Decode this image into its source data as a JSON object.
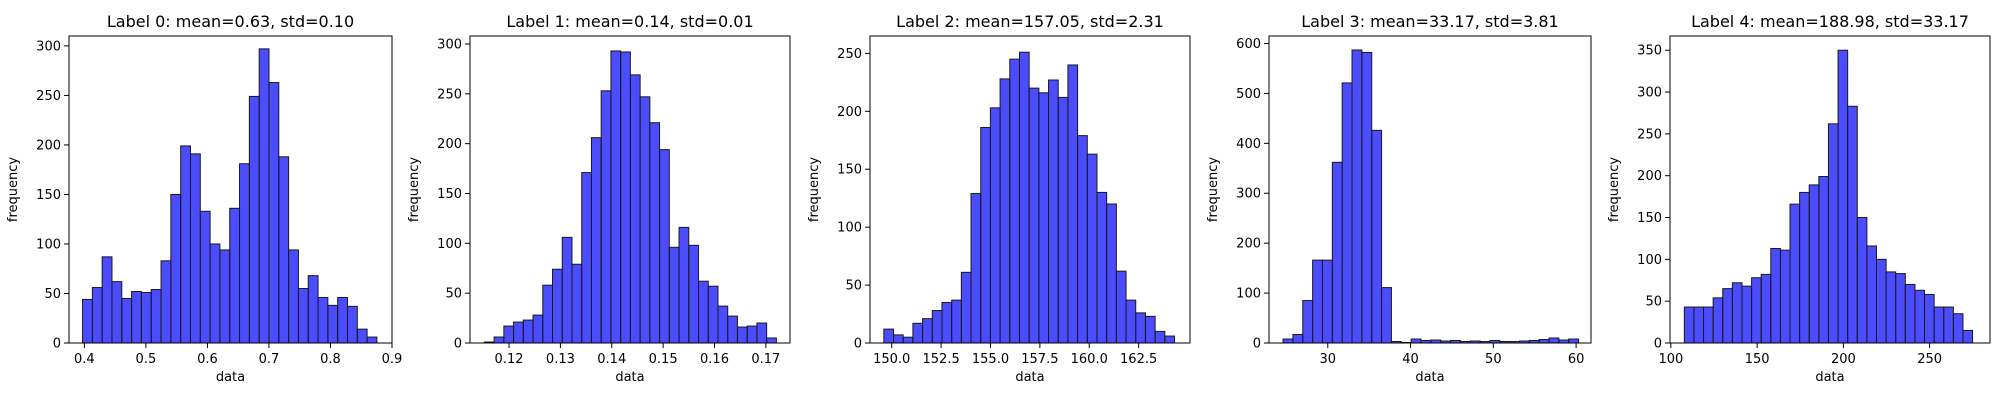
{
  "figure": {
    "background": "#ffffff"
  },
  "style": {
    "bar_fill": "#0000ff",
    "bar_opacity": 0.7,
    "bar_edge": "#1a1a1a",
    "axis_color": "#000000"
  },
  "chart_data": [
    {
      "type": "bar",
      "title": "Label 0: mean=0.63, std=0.10",
      "xlabel": "data",
      "ylabel": "frequency",
      "xlim": [
        0.375,
        0.9
      ],
      "ylim": [
        0,
        310
      ],
      "xticks": [
        0.4,
        0.5,
        0.6,
        0.7,
        0.8,
        0.9
      ],
      "xtick_labels": [
        "0.4",
        "0.5",
        "0.6",
        "0.7",
        "0.8",
        "0.9"
      ],
      "yticks": [
        0,
        50,
        100,
        150,
        200,
        250,
        300
      ],
      "ytick_labels": [
        "0",
        "50",
        "100",
        "150",
        "200",
        "250",
        "300"
      ],
      "bin_start": 0.397,
      "bin_width": 0.01595,
      "values": [
        44,
        56,
        87,
        62,
        45,
        52,
        51,
        54,
        83,
        150,
        199,
        191,
        133,
        100,
        94,
        136,
        181,
        249,
        297,
        263,
        188,
        94,
        55,
        68,
        46,
        38,
        46,
        37,
        14,
        6
      ]
    },
    {
      "type": "bar",
      "title": "Label 1: mean=0.14, std=0.01",
      "xlabel": "data",
      "ylabel": "frequency",
      "xlim": [
        0.1124,
        0.1747
      ],
      "ylim": [
        0,
        308
      ],
      "xticks": [
        0.12,
        0.13,
        0.14,
        0.15,
        0.16,
        0.17
      ],
      "xtick_labels": [
        "0.12",
        "0.13",
        "0.14",
        "0.15",
        "0.16",
        "0.17"
      ],
      "yticks": [
        0,
        50,
        100,
        150,
        200,
        250,
        300
      ],
      "ytick_labels": [
        "0",
        "50",
        "100",
        "150",
        "200",
        "250",
        "300"
      ],
      "bin_start": 0.1152,
      "bin_width": 0.001895,
      "values": [
        1,
        6,
        17,
        21,
        23,
        28,
        58,
        74,
        106,
        79,
        171,
        206,
        253,
        293,
        292,
        269,
        247,
        221,
        194,
        96,
        116,
        98,
        62,
        57,
        37,
        27,
        16,
        17,
        20,
        5
      ]
    },
    {
      "type": "bar",
      "title": "Label 2: mean=157.05, std=2.31",
      "xlabel": "data",
      "ylabel": "frequency",
      "xlim": [
        148.9,
        165.1
      ],
      "ylim": [
        0,
        265
      ],
      "xticks": [
        150.0,
        152.5,
        155.0,
        157.5,
        160.0,
        162.5
      ],
      "xtick_labels": [
        "150.0",
        "152.5",
        "155.0",
        "157.5",
        "160.0",
        "162.5"
      ],
      "yticks": [
        0,
        50,
        100,
        150,
        200,
        250
      ],
      "ytick_labels": [
        "0",
        "50",
        "100",
        "150",
        "200",
        "250"
      ],
      "bin_start": 149.6,
      "bin_width": 0.4905,
      "values": [
        12,
        7,
        5,
        17,
        21,
        28,
        35,
        37,
        61,
        129,
        186,
        203,
        228,
        245,
        251,
        220,
        216,
        227,
        212,
        240,
        179,
        163,
        130,
        120,
        62,
        37,
        26,
        23,
        10,
        6
      ]
    },
    {
      "type": "bar",
      "title": "Label 3: mean=33.17, std=3.81",
      "xlabel": "data",
      "ylabel": "frequency",
      "xlim": [
        22.9,
        61.8
      ],
      "ylim": [
        0,
        615
      ],
      "xticks": [
        30,
        40,
        50,
        60
      ],
      "xtick_labels": [
        "30",
        "40",
        "50",
        "60"
      ],
      "yticks": [
        0,
        100,
        200,
        300,
        400,
        500,
        600
      ],
      "ytick_labels": [
        "0",
        "100",
        "200",
        "300",
        "400",
        "500",
        "600"
      ],
      "bin_start": 24.6,
      "bin_width": 1.19,
      "values": [
        8,
        17,
        85,
        166,
        166,
        362,
        521,
        587,
        582,
        426,
        111,
        3,
        1,
        8,
        5,
        6,
        4,
        5,
        3,
        4,
        3,
        5,
        3,
        3,
        4,
        5,
        7,
        10,
        6,
        8
      ]
    },
    {
      "type": "bar",
      "title": "Label 4: mean=188.98, std=33.17",
      "xlabel": "data",
      "ylabel": "frequency",
      "xlim": [
        99.5,
        285.0
      ],
      "ylim": [
        0,
        367
      ],
      "xticks": [
        100,
        150,
        200,
        250
      ],
      "xtick_labels": [
        "100",
        "150",
        "200",
        "250"
      ],
      "yticks": [
        0,
        50,
        100,
        150,
        200,
        250,
        300,
        350
      ],
      "ytick_labels": [
        "0",
        "50",
        "100",
        "150",
        "200",
        "250",
        "300",
        "350"
      ],
      "bin_start": 107.8,
      "bin_width": 5.57,
      "values": [
        43,
        43,
        43,
        54,
        65,
        72,
        68,
        78,
        82,
        113,
        111,
        166,
        180,
        189,
        199,
        262,
        350,
        283,
        150,
        116,
        100,
        85,
        83,
        70,
        63,
        58,
        43,
        43,
        35,
        15
      ]
    }
  ]
}
